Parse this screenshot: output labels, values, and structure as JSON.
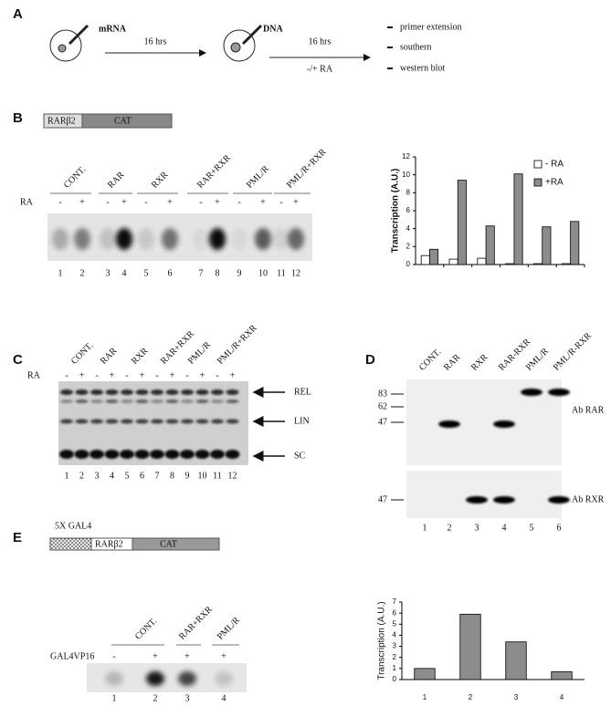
{
  "panel_a": {
    "label": "A",
    "mrna": "mRNA",
    "dna": "DNA",
    "time_1": "16 hrs",
    "time_2": "16 hrs",
    "treatment": "-/+ RA",
    "readouts": [
      "primer extension",
      "southern",
      "western blot"
    ]
  },
  "panel_b": {
    "label": "B",
    "construct": [
      "RARβ2",
      "CAT"
    ],
    "groups": [
      "CONT.",
      "RAR",
      "RXR",
      "RAR+RXR",
      "PML/R",
      "PML/R+RXR"
    ],
    "ra_label": "RA",
    "ra_marks": [
      "-",
      "+",
      "-",
      "+",
      "-",
      "+",
      "-",
      "+",
      "-",
      "+",
      "-",
      "+"
    ],
    "lanes": [
      "1",
      "2",
      "3",
      "4",
      "5",
      "6",
      "7",
      "8",
      "9",
      "10",
      "11",
      "12"
    ],
    "chart": {
      "type": "bar",
      "y_label": "Transcription (A.U.)",
      "categories": [
        null,
        null,
        null,
        null,
        null,
        null
      ],
      "series": [
        {
          "name": "- RA",
          "color": "#ffffff",
          "values": [
            1,
            0.6,
            0.7,
            0.1,
            0.1,
            0.1
          ]
        },
        {
          "name": "+RA",
          "color": "#8c8c8c",
          "values": [
            1.7,
            9.4,
            4.3,
            10.1,
            4.2,
            4.8
          ]
        }
      ],
      "ylim": [
        0,
        12
      ],
      "yticks": [
        0,
        2,
        4,
        6,
        8,
        10,
        12
      ],
      "legend": "upper right"
    }
  },
  "panel_c": {
    "label": "C",
    "groups": [
      "CONT.",
      "RAR",
      "RXR",
      "RAR+RXR",
      "PML/R",
      "PML/R+RXR"
    ],
    "ra_label": "RA",
    "ra_marks": [
      "-",
      "+",
      "-",
      "+",
      "-",
      "+",
      "-",
      "+",
      "-",
      "+",
      "-",
      "+"
    ],
    "bands": [
      "REL",
      "LIN",
      "SC"
    ],
    "lanes": [
      "1",
      "2",
      "3",
      "4",
      "5",
      "6",
      "7",
      "8",
      "9",
      "10",
      "11",
      "12"
    ]
  },
  "panel_d": {
    "label": "D",
    "groups": [
      "CONT.",
      "RAR",
      "RXR",
      "RAR-RXR",
      "PML/R",
      "PML/R-RXR"
    ],
    "markers_top": [
      "83",
      "62",
      "47"
    ],
    "markers_bottom": [
      "47"
    ],
    "antibodies": [
      "Ab RAR",
      "Ab RXR"
    ],
    "lanes": [
      "1",
      "2",
      "3",
      "4",
      "5",
      "6"
    ]
  },
  "panel_e": {
    "label": "E",
    "construct": [
      "5X GAL4",
      "RARβ2",
      "CAT"
    ],
    "groups": [
      "CONT.",
      "RAR+RXR",
      "PML/R"
    ],
    "gal4_label": "GAL4VP16",
    "gal4_marks": [
      "-",
      "+",
      "+",
      "+"
    ],
    "lanes": [
      "1",
      "2",
      "3",
      "4"
    ],
    "chart": {
      "type": "bar",
      "y_label": "Transcription (A.U.)",
      "categories": [
        "1",
        "2",
        "3",
        "4"
      ],
      "values": [
        1,
        5.9,
        3.4,
        0.7
      ],
      "color": "#8c8c8c",
      "ylim": [
        0,
        7
      ],
      "yticks": [
        0,
        1,
        2,
        3,
        4,
        5,
        6,
        7
      ]
    }
  }
}
